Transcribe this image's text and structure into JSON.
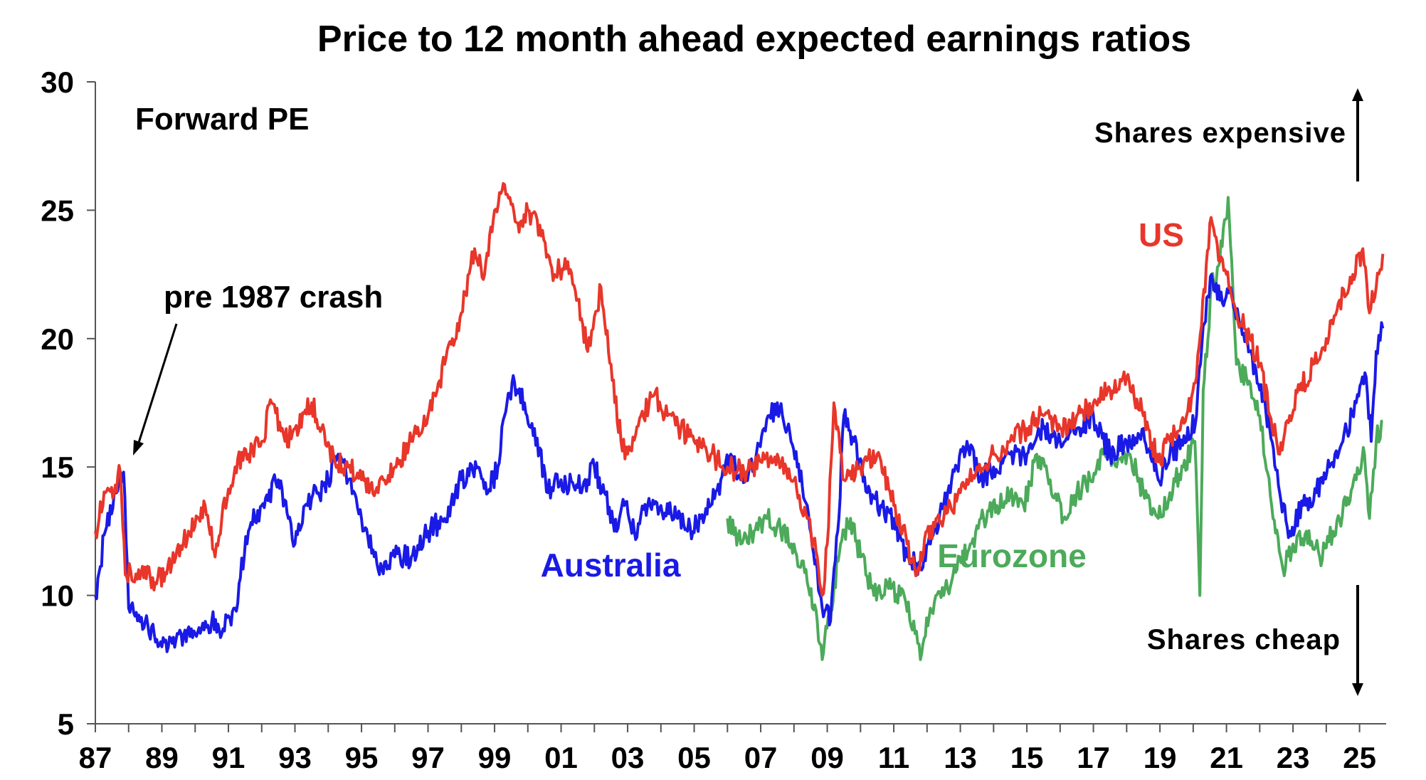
{
  "chart_data": {
    "type": "line",
    "title": "Price to 12 month ahead expected earnings ratios",
    "subtitle": "Forward PE",
    "xlabel": "",
    "ylabel": "",
    "xlim": [
      1987.0,
      2025.8
    ],
    "ylim": [
      5,
      30
    ],
    "y_ticks": [
      5,
      10,
      15,
      20,
      25,
      30
    ],
    "y_tick_labels": [
      "5",
      "10",
      "15",
      "20",
      "25",
      "30"
    ],
    "x_ticks": [
      1987,
      1989,
      1991,
      1993,
      1995,
      1997,
      1999,
      2001,
      2003,
      2005,
      2007,
      2009,
      2011,
      2013,
      2015,
      2017,
      2019,
      2021,
      2023,
      2025
    ],
    "x_tick_labels": [
      "87",
      "89",
      "91",
      "93",
      "95",
      "97",
      "99",
      "01",
      "03",
      "05",
      "07",
      "09",
      "11",
      "13",
      "15",
      "17",
      "19",
      "21",
      "23",
      "25"
    ],
    "grid": false,
    "colors": {
      "US": "#e8362a",
      "Australia": "#1a1ae6",
      "Eurozone": "#4caa5a",
      "axis": "#555555"
    },
    "annotations": {
      "pre_crash": "pre 1987 crash",
      "expensive": "Shares expensive",
      "cheap": "Shares cheap"
    },
    "series": [
      {
        "name": "US",
        "label": "US",
        "x": [
          1987.0,
          1987.3,
          1987.6,
          1987.75,
          1987.9,
          1988.3,
          1988.8,
          1989.3,
          1989.8,
          1990.3,
          1990.6,
          1990.8,
          1991.2,
          1991.6,
          1992.0,
          1992.3,
          1992.7,
          1993.0,
          1993.5,
          1993.8,
          1994.2,
          1994.6,
          1995.0,
          1995.5,
          1996.0,
          1996.5,
          1997.0,
          1997.5,
          1998.0,
          1998.4,
          1998.7,
          1999.0,
          1999.3,
          1999.7,
          2000.0,
          2000.4,
          2000.8,
          2001.2,
          2001.5,
          2001.8,
          2002.2,
          2002.5,
          2002.8,
          2003.0,
          2003.4,
          2003.8,
          2004.2,
          2004.6,
          2005.0,
          2005.5,
          2006.0,
          2006.5,
          2007.0,
          2007.5,
          2008.0,
          2008.4,
          2008.7,
          2008.85,
          2009.0,
          2009.2,
          2009.5,
          2010.0,
          2010.5,
          2011.0,
          2011.4,
          2011.7,
          2012.0,
          2012.5,
          2013.0,
          2013.5,
          2014.0,
          2014.5,
          2015.0,
          2015.5,
          2016.0,
          2016.5,
          2017.0,
          2017.5,
          2018.0,
          2018.5,
          2018.95,
          2019.3,
          2019.8,
          2020.1,
          2020.25,
          2020.5,
          2020.8,
          2021.0,
          2021.3,
          2021.7,
          2022.0,
          2022.3,
          2022.6,
          2022.9,
          2023.2,
          2023.6,
          2024.0,
          2024.4,
          2024.8,
          2025.1,
          2025.3,
          2025.5,
          2025.7
        ],
        "values": [
          12.5,
          14.0,
          14.3,
          14.8,
          10.8,
          11.0,
          10.5,
          11.2,
          12.5,
          13.5,
          11.5,
          13.0,
          15.0,
          15.5,
          16.0,
          17.5,
          16.0,
          16.5,
          17.5,
          16.5,
          15.2,
          15.0,
          14.5,
          14.0,
          15.0,
          16.0,
          17.0,
          19.0,
          21.0,
          23.5,
          22.5,
          25.0,
          26.0,
          24.5,
          25.0,
          24.0,
          22.5,
          23.0,
          21.5,
          19.5,
          22.0,
          19.0,
          16.0,
          15.5,
          17.0,
          17.8,
          17.0,
          16.5,
          16.0,
          15.5,
          15.0,
          14.8,
          15.2,
          15.5,
          14.5,
          13.0,
          11.5,
          10.0,
          12.0,
          17.5,
          14.5,
          15.0,
          15.5,
          13.5,
          12.0,
          10.8,
          12.5,
          13.0,
          14.0,
          15.0,
          15.5,
          16.0,
          16.5,
          17.0,
          16.5,
          17.0,
          17.5,
          18.0,
          18.5,
          17.0,
          15.2,
          16.0,
          17.0,
          18.5,
          20.5,
          24.5,
          23.0,
          22.5,
          21.0,
          20.0,
          19.0,
          17.0,
          15.5,
          17.0,
          18.0,
          19.0,
          20.0,
          21.5,
          22.5,
          23.5,
          21.0,
          22.0,
          23.3
        ]
      },
      {
        "name": "Australia",
        "label": "Australia",
        "x": [
          1987.0,
          1987.3,
          1987.6,
          1987.85,
          1988.0,
          1988.5,
          1989.0,
          1989.5,
          1990.0,
          1990.5,
          1990.8,
          1991.2,
          1991.6,
          1992.0,
          1992.5,
          1992.8,
          1993.0,
          1993.3,
          1993.7,
          1994.0,
          1994.3,
          1994.6,
          1995.0,
          1995.5,
          1996.0,
          1996.5,
          1997.0,
          1997.5,
          1998.0,
          1998.5,
          1998.8,
          1999.1,
          1999.3,
          1999.6,
          1999.9,
          2000.2,
          2000.6,
          2001.0,
          2001.5,
          2001.8,
          2002.0,
          2002.3,
          2002.6,
          2002.9,
          2003.2,
          2003.6,
          2004.0,
          2004.5,
          2004.8,
          2005.2,
          2005.5,
          2005.8,
          2006.1,
          2006.4,
          2006.8,
          2007.1,
          2007.5,
          2007.8,
          2008.1,
          2008.4,
          2008.7,
          2008.85,
          2009.1,
          2009.35,
          2009.5,
          2009.8,
          2010.2,
          2010.6,
          2011.0,
          2011.4,
          2011.8,
          2012.1,
          2012.5,
          2012.9,
          2013.2,
          2013.6,
          2014.0,
          2014.5,
          2015.0,
          2015.5,
          2016.0,
          2016.5,
          2017.0,
          2017.5,
          2018.0,
          2018.5,
          2018.95,
          2019.3,
          2019.8,
          2020.1,
          2020.3,
          2020.55,
          2020.8,
          2021.1,
          2021.4,
          2021.7,
          2022.0,
          2022.3,
          2022.6,
          2022.9,
          2023.3,
          2023.7,
          2024.1,
          2024.5,
          2024.9,
          2025.2,
          2025.35,
          2025.5,
          2025.7
        ],
        "values": [
          10.0,
          12.5,
          14.0,
          14.8,
          9.5,
          9.0,
          8.0,
          8.5,
          8.5,
          9.0,
          8.5,
          9.5,
          12.5,
          13.5,
          14.5,
          13.0,
          12.0,
          13.5,
          14.0,
          14.5,
          15.5,
          14.5,
          13.0,
          11.0,
          11.5,
          11.5,
          12.5,
          13.0,
          14.5,
          15.0,
          14.0,
          15.0,
          17.0,
          18.3,
          17.5,
          16.5,
          14.0,
          14.5,
          14.2,
          14.5,
          15.0,
          14.0,
          12.5,
          13.5,
          12.5,
          13.5,
          13.5,
          13.0,
          12.5,
          13.0,
          13.5,
          14.5,
          15.5,
          14.5,
          15.0,
          16.5,
          17.5,
          16.5,
          15.0,
          13.5,
          11.0,
          9.5,
          9.0,
          13.0,
          17.0,
          16.0,
          14.0,
          13.5,
          13.0,
          11.5,
          11.0,
          12.0,
          13.5,
          15.0,
          16.0,
          14.5,
          15.0,
          15.5,
          15.5,
          16.5,
          16.0,
          16.5,
          17.0,
          15.5,
          16.0,
          16.5,
          14.5,
          15.5,
          16.0,
          17.0,
          20.5,
          22.5,
          21.5,
          22.0,
          20.5,
          19.5,
          18.0,
          16.5,
          14.0,
          12.5,
          13.5,
          14.0,
          15.0,
          16.0,
          17.5,
          18.5,
          16.0,
          19.5,
          20.4
        ]
      },
      {
        "name": "Eurozone",
        "label": "Eurozone",
        "x": [
          2006.0,
          2006.4,
          2006.8,
          2007.2,
          2007.6,
          2008.0,
          2008.4,
          2008.7,
          2008.85,
          2009.1,
          2009.4,
          2009.7,
          2010.0,
          2010.4,
          2010.8,
          2011.2,
          2011.6,
          2011.8,
          2012.1,
          2012.5,
          2012.9,
          2013.3,
          2013.7,
          2014.1,
          2014.5,
          2014.9,
          2015.3,
          2015.7,
          2016.1,
          2016.5,
          2016.9,
          2017.3,
          2017.7,
          2018.1,
          2018.5,
          2018.95,
          2019.3,
          2019.7,
          2020.05,
          2020.2,
          2020.3,
          2020.55,
          2020.8,
          2021.05,
          2021.3,
          2021.6,
          2022.0,
          2022.4,
          2022.7,
          2023.0,
          2023.4,
          2023.8,
          2024.2,
          2024.6,
          2024.9,
          2025.15,
          2025.3,
          2025.5,
          2025.7
        ],
        "values": [
          13.0,
          12.0,
          12.5,
          13.0,
          12.5,
          12.0,
          10.5,
          9.0,
          7.5,
          9.5,
          12.0,
          13.0,
          11.5,
          10.0,
          10.5,
          10.0,
          9.0,
          7.5,
          9.5,
          10.0,
          11.0,
          12.0,
          13.0,
          13.5,
          14.0,
          13.5,
          15.5,
          14.5,
          13.0,
          14.0,
          14.5,
          15.5,
          15.0,
          15.5,
          14.0,
          13.0,
          14.0,
          15.0,
          16.0,
          10.0,
          18.0,
          22.0,
          23.0,
          25.5,
          19.0,
          18.5,
          17.0,
          13.0,
          11.0,
          12.0,
          12.5,
          11.5,
          12.5,
          13.5,
          14.5,
          15.5,
          13.0,
          16.0,
          16.8
        ]
      }
    ]
  }
}
